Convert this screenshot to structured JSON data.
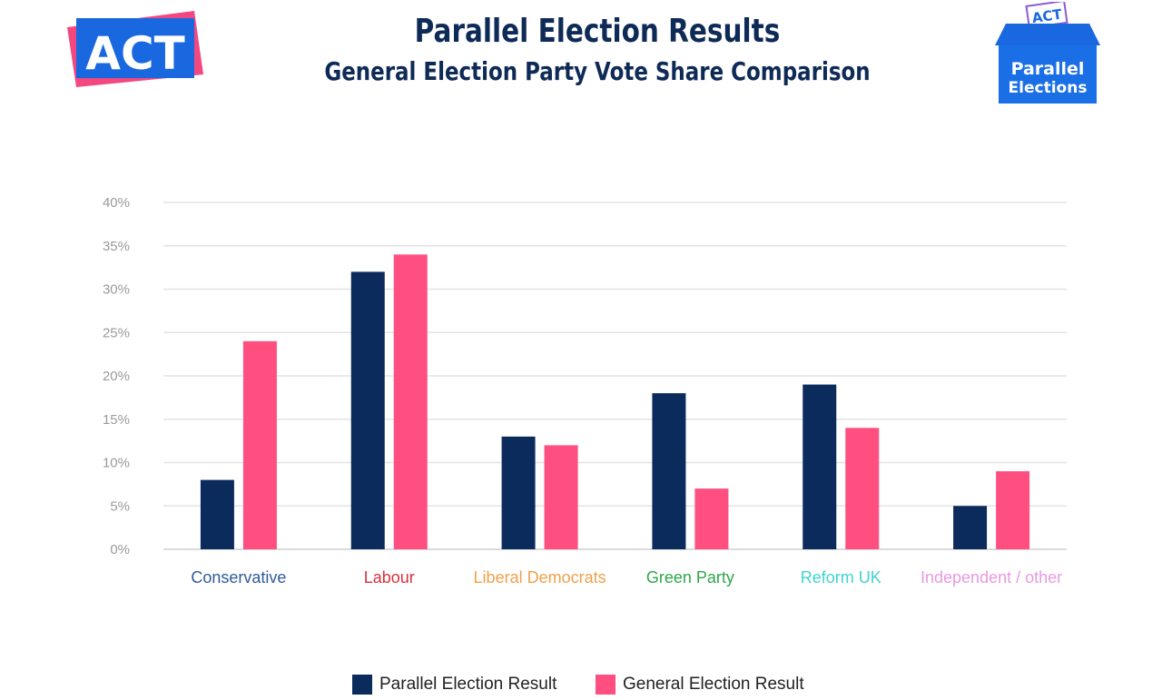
{
  "header": {
    "title": "Parallel Election Results",
    "subtitle": "General Election Party Vote Share Comparison"
  },
  "logos": {
    "left": "ACT",
    "right_top": "ACT",
    "right_line1": "Parallel",
    "right_line2": "Elections"
  },
  "colors": {
    "parallel": "#0b2b5c",
    "general": "#ff4f80",
    "title": "#0e2a56",
    "grid": "#e3e3e3"
  },
  "chart_data": {
    "type": "bar",
    "title": "General Election Party Vote Share Comparison",
    "categories": [
      "Conservative",
      "Labour",
      "Liberal Democrats",
      "Green Party",
      "Reform UK",
      "Independent / other"
    ],
    "category_colors": [
      "#2f5a9c",
      "#d9313d",
      "#f0a04b",
      "#2fa64a",
      "#3fd4cf",
      "#e89ae0"
    ],
    "series": [
      {
        "name": "Parallel Election Result",
        "values": [
          8,
          32,
          13,
          18,
          19,
          5
        ]
      },
      {
        "name": "General Election Result",
        "values": [
          24,
          34,
          12,
          7,
          14,
          9
        ]
      }
    ],
    "ylim": [
      0,
      40
    ],
    "yticks": [
      "0%",
      "5%",
      "10%",
      "15%",
      "20%",
      "25%",
      "30%",
      "35%",
      "40%"
    ],
    "grid": true,
    "legend": "bottom"
  }
}
